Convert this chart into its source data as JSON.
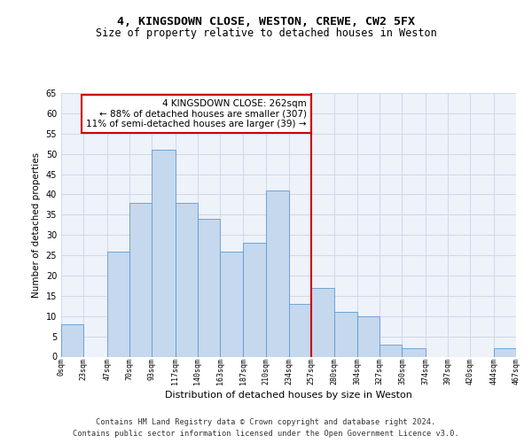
{
  "title1": "4, KINGSDOWN CLOSE, WESTON, CREWE, CW2 5FX",
  "title2": "Size of property relative to detached houses in Weston",
  "xlabel": "Distribution of detached houses by size in Weston",
  "ylabel": "Number of detached properties",
  "footer1": "Contains HM Land Registry data © Crown copyright and database right 2024.",
  "footer2": "Contains public sector information licensed under the Open Government Licence v3.0.",
  "annotation_title": "4 KINGSDOWN CLOSE: 262sqm",
  "annotation_line1": "← 88% of detached houses are smaller (307)",
  "annotation_line2": "11% of semi-detached houses are larger (39) →",
  "bar_values": [
    8,
    0,
    26,
    38,
    51,
    38,
    34,
    26,
    28,
    41,
    13,
    17,
    11,
    10,
    3,
    2,
    0,
    0,
    0,
    2
  ],
  "bin_edges": [
    0,
    23,
    47,
    70,
    93,
    117,
    140,
    163,
    187,
    210,
    234,
    257,
    280,
    304,
    327,
    350,
    374,
    397,
    420,
    444,
    467
  ],
  "tick_labels": [
    "0sqm",
    "23sqm",
    "47sqm",
    "70sqm",
    "93sqm",
    "117sqm",
    "140sqm",
    "163sqm",
    "187sqm",
    "210sqm",
    "234sqm",
    "257sqm",
    "280sqm",
    "304sqm",
    "327sqm",
    "350sqm",
    "374sqm",
    "397sqm",
    "420sqm",
    "444sqm",
    "467sqm"
  ],
  "bar_color": "#c5d8ed",
  "bar_edge_color": "#5b9bd5",
  "vline_color": "#cc0000",
  "vline_x": 257,
  "annotation_box_color": "#cc0000",
  "grid_color": "#d0d8e8",
  "ylim": [
    0,
    65
  ],
  "yticks": [
    0,
    5,
    10,
    15,
    20,
    25,
    30,
    35,
    40,
    45,
    50,
    55,
    60,
    65
  ],
  "background_color": "#eef2f9",
  "title1_fontsize": 9.5,
  "title2_fontsize": 8.5,
  "ylabel_fontsize": 7.5,
  "xlabel_fontsize": 8.0,
  "tick_fontsize": 6.0,
  "ytick_fontsize": 7.0,
  "footer_fontsize": 6.2,
  "annotation_fontsize": 7.5
}
